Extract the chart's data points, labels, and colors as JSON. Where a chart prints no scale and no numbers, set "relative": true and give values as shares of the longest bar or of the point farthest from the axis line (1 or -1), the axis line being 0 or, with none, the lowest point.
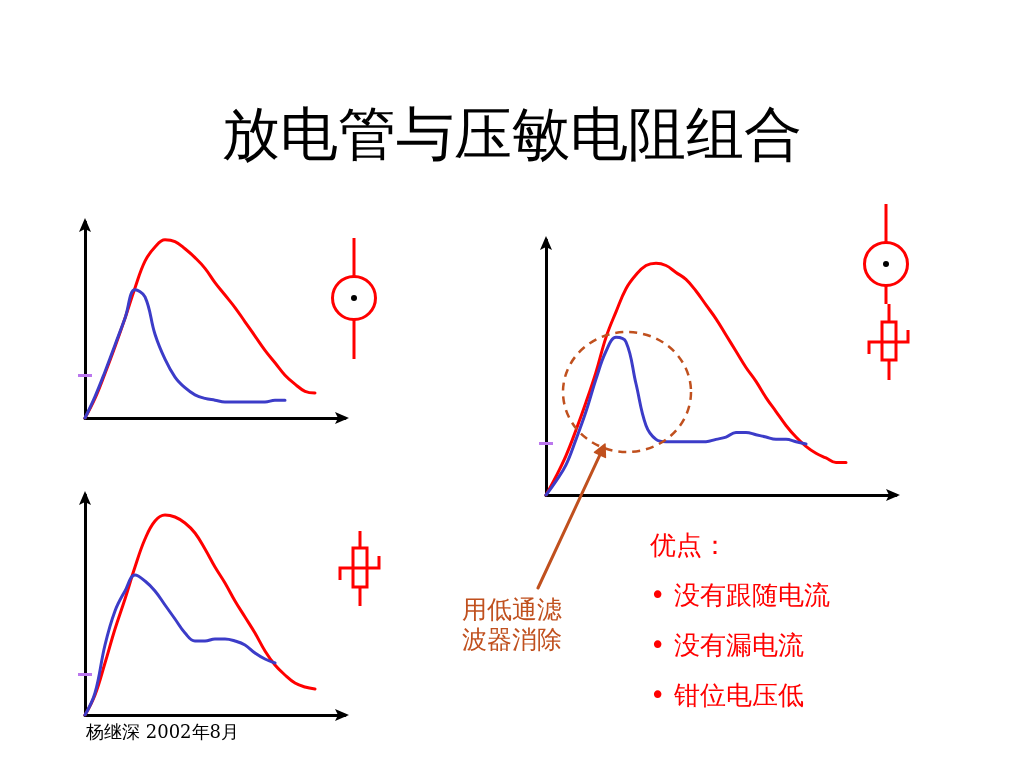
{
  "chart_data": [
    {
      "type": "line",
      "title": "放电管与压敏电阻组合",
      "relative": true,
      "categories": [
        null,
        null,
        null,
        null,
        null,
        null,
        null,
        null,
        null,
        null,
        null,
        null,
        null,
        null,
        null,
        null,
        null,
        null,
        null,
        null,
        null,
        null,
        null,
        null,
        null,
        null,
        null
      ],
      "series": [
        {
          "color": "#ff0000",
          "values": [
            0,
            0.11,
            0.25,
            0.4,
            0.56,
            0.73,
            0.88,
            0.96,
            1,
            0.99,
            0.95,
            0.9,
            0.84,
            0.76,
            0.69,
            0.62,
            0.54,
            0.46,
            0.38,
            0.31,
            0.24,
            0.19,
            0.15,
            0.14,
            null,
            null,
            null
          ]
        },
        {
          "color": "#3c3cc8",
          "values": [
            0,
            0.12,
            0.26,
            0.41,
            0.56,
            0.72,
            0.68,
            0.47,
            0.33,
            0.23,
            0.17,
            0.13,
            0.11,
            0.1,
            0.09,
            0.09,
            0.09,
            0.09,
            0.09,
            0.1,
            0.1,
            null,
            null,
            null,
            null,
            null,
            null
          ]
        }
      ]
    },
    {
      "type": "line",
      "relative": true,
      "categories": [
        null,
        null,
        null,
        null,
        null,
        null,
        null,
        null,
        null,
        null,
        null,
        null,
        null,
        null,
        null,
        null,
        null,
        null,
        null,
        null,
        null,
        null,
        null,
        null,
        null,
        null,
        null,
        null,
        null,
        null,
        null,
        null,
        null,
        null,
        null,
        null
      ],
      "series": [
        {
          "color": "#ff0000",
          "values": [
            0,
            0.08,
            0.17,
            0.28,
            0.4,
            0.53,
            0.68,
            0.79,
            0.89,
            0.95,
            0.99,
            1,
            0.99,
            0.96,
            0.93,
            0.88,
            0.82,
            0.76,
            0.69,
            0.62,
            0.55,
            0.49,
            0.42,
            0.36,
            0.3,
            0.25,
            0.21,
            0.18,
            0.16,
            0.14,
            0.14,
            null,
            null,
            null,
            null,
            null
          ]
        },
        {
          "color": "#3c3cc8",
          "values": [
            0,
            0.06,
            0.13,
            0.24,
            0.36,
            0.5,
            0.62,
            0.68,
            0.66,
            0.48,
            0.3,
            0.24,
            0.23,
            0.23,
            0.23,
            0.23,
            0.23,
            0.24,
            0.25,
            0.27,
            0.27,
            0.26,
            0.25,
            0.24,
            0.24,
            0.23,
            0.22,
            null,
            null,
            null,
            null,
            null,
            null,
            null,
            null,
            null
          ]
        }
      ],
      "annotations": [
        "用低通滤波器消除",
        "优点：",
        "• 没有跟随电流",
        "• 没有漏电流",
        "• 钳位电压低"
      ]
    },
    {
      "type": "line",
      "relative": true,
      "categories": [
        null,
        null,
        null,
        null,
        null,
        null,
        null,
        null,
        null,
        null,
        null,
        null,
        null,
        null,
        null,
        null,
        null,
        null,
        null,
        null,
        null,
        null,
        null,
        null,
        null,
        null,
        null
      ],
      "series": [
        {
          "color": "#ff0000",
          "values": [
            0,
            0.1,
            0.26,
            0.43,
            0.58,
            0.74,
            0.88,
            0.97,
            1,
            0.99,
            0.96,
            0.91,
            0.83,
            0.74,
            0.66,
            0.57,
            0.49,
            0.41,
            0.32,
            0.25,
            0.2,
            0.16,
            0.14,
            0.13,
            null,
            null,
            null
          ]
        },
        {
          "color": "#3c3cc8",
          "values": [
            0,
            0.11,
            0.35,
            0.52,
            0.62,
            0.7,
            0.67,
            0.62,
            0.55,
            0.48,
            0.41,
            0.37,
            0.37,
            0.38,
            0.38,
            0.37,
            0.35,
            0.31,
            0.28,
            0.26,
            null,
            null,
            null,
            null,
            null,
            null,
            null
          ]
        }
      ],
      "annotations": [
        "杨继深 2002年8月"
      ]
    }
  ]
}
